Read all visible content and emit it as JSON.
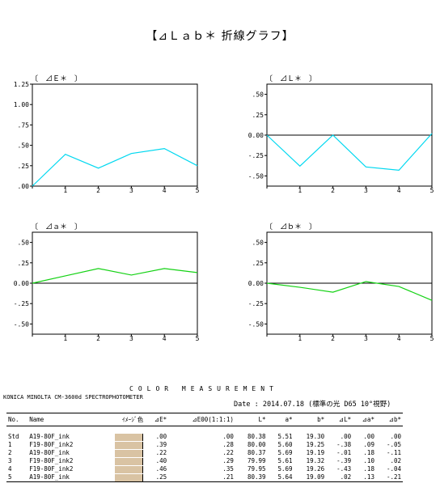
{
  "main_title": "【⊿Ｌａｂ＊ 折線グラフ】",
  "colors": {
    "delta_e": "#00d8f0",
    "delta_l": "#00d8f0",
    "delta_a": "#14d214",
    "delta_b": "#14d214",
    "swatch": "#d9c3a3"
  },
  "chart_data": [
    {
      "id": "de",
      "type": "line",
      "title": "〔　⊿Ｅ＊　〕",
      "x": [
        0,
        1,
        2,
        3,
        4,
        5
      ],
      "x_tick_labels": [
        "",
        "1",
        "2",
        "3",
        "4",
        "5"
      ],
      "series": [
        {
          "values": [
            0.0,
            0.39,
            0.22,
            0.4,
            0.46,
            0.25
          ]
        }
      ],
      "ylim": [
        0,
        1.25
      ],
      "y_ticks": [
        0,
        0.25,
        0.5,
        0.75,
        1.0,
        1.25
      ],
      "y_tick_labels": [
        ".00",
        ".25",
        ".50",
        ".75",
        "1.00",
        "1.25"
      ],
      "zero_line": false
    },
    {
      "id": "dl",
      "type": "line",
      "title": "〔　⊿Ｌ＊　〕",
      "x": [
        0,
        1,
        2,
        3,
        4,
        5
      ],
      "x_tick_labels": [
        "",
        "1",
        "2",
        "3",
        "4",
        "5"
      ],
      "series": [
        {
          "values": [
            0.0,
            -0.38,
            0.0,
            -0.39,
            -0.43,
            0.02
          ]
        }
      ],
      "ylim": [
        -0.625,
        0.625
      ],
      "y_ticks": [
        -0.5,
        -0.25,
        0,
        0.25,
        0.5
      ],
      "y_tick_labels": [
        "-.50",
        "-.25",
        "0.00",
        ".25",
        ".50"
      ],
      "zero_line": true
    },
    {
      "id": "da",
      "type": "line",
      "title": "〔　⊿ａ＊　〕",
      "x": [
        0,
        1,
        2,
        3,
        4,
        5
      ],
      "x_tick_labels": [
        "",
        "1",
        "2",
        "3",
        "4",
        "5"
      ],
      "series": [
        {
          "values": [
            0.0,
            0.09,
            0.18,
            0.1,
            0.18,
            0.13
          ]
        }
      ],
      "ylim": [
        -0.625,
        0.625
      ],
      "y_ticks": [
        -0.5,
        -0.25,
        0,
        0.25,
        0.5
      ],
      "y_tick_labels": [
        "-.50",
        "-.25",
        "0.00",
        ".25",
        ".50"
      ],
      "zero_line": true
    },
    {
      "id": "db",
      "type": "line",
      "title": "〔　⊿ｂ＊　〕",
      "x": [
        0,
        1,
        2,
        3,
        4,
        5
      ],
      "x_tick_labels": [
        "",
        "1",
        "2",
        "3",
        "4",
        "5"
      ],
      "series": [
        {
          "values": [
            0.0,
            -0.05,
            -0.11,
            0.02,
            -0.04,
            -0.21
          ]
        }
      ],
      "ylim": [
        -0.625,
        0.625
      ],
      "y_ticks": [
        -0.5,
        -0.25,
        0,
        0.25,
        0.5
      ],
      "y_tick_labels": [
        "-.50",
        "-.25",
        "0.00",
        ".25",
        ".50"
      ],
      "zero_line": true
    }
  ],
  "measurement": {
    "title": "COLOR MEASUREMENT",
    "instrument": "KONICA MINOLTA CM-3600d SPECTROPHOTOMETER",
    "date": "Date : 2014.07.18 (標準の光 D65 10°視野)",
    "headers": [
      "No.",
      "Name",
      "ｲﾒｰｼﾞ色",
      "⊿E*",
      "⊿E00(1:1:1)",
      "L*",
      "a*",
      "b*",
      "⊿L*",
      "⊿a*",
      "⊿b*"
    ],
    "rows": [
      {
        "no": "Std",
        "name": "A19-80F_ink",
        "de": ".00",
        "de00": ".00",
        "L": "80.38",
        "a": "5.51",
        "b": "19.30",
        "dL": ".00",
        "da": ".00",
        "db": ".00"
      },
      {
        "no": "1",
        "name": "F19-80F_ink2",
        "de": ".39",
        "de00": ".28",
        "L": "80.00",
        "a": "5.60",
        "b": "19.25",
        "dL": "-.38",
        "da": ".09",
        "db": "-.05"
      },
      {
        "no": "2",
        "name": "A19-80F_ink",
        "de": ".22",
        "de00": ".22",
        "L": "80.37",
        "a": "5.69",
        "b": "19.19",
        "dL": "-.01",
        "da": ".18",
        "db": "-.11"
      },
      {
        "no": "3",
        "name": "F19-80F_ink2",
        "de": ".40",
        "de00": ".29",
        "L": "79.99",
        "a": "5.61",
        "b": "19.32",
        "dL": "-.39",
        "da": ".10",
        "db": ".02"
      },
      {
        "no": "4",
        "name": "F19-80F_ink2",
        "de": ".46",
        "de00": ".35",
        "L": "79.95",
        "a": "5.69",
        "b": "19.26",
        "dL": "-.43",
        "da": ".18",
        "db": "-.04"
      },
      {
        "no": "5",
        "name": "A19-80F_ink",
        "de": ".25",
        "de00": ".21",
        "L": "80.39",
        "a": "5.64",
        "b": "19.09",
        "dL": ".02",
        "da": ".13",
        "db": "-.21"
      }
    ]
  }
}
